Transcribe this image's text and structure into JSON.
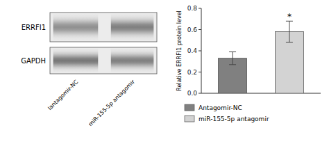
{
  "chart_data": [
    {
      "type": "blot",
      "rows": [
        "ERRFI1",
        "GAPDH"
      ],
      "lanes": [
        "Iantagomir-NC",
        "miR-155-5p antagomir"
      ]
    },
    {
      "type": "bar",
      "categories": [
        "Antagomir-NC",
        "miR-155-5p antagomir"
      ],
      "values": [
        0.33,
        0.58
      ],
      "errors": [
        0.06,
        0.1
      ],
      "colors": [
        "#808080",
        "#d3d3d3"
      ],
      "ylabel": "Relative ERRFI1 protein level",
      "ylim": [
        0.0,
        0.8
      ],
      "yticks": [
        {
          "value": 0.0,
          "label": "0.0"
        },
        0.2,
        0.4,
        0.6,
        0.8
      ],
      "annotations": [
        {
          "text": "*",
          "category": "miR-155-5p antagomir"
        }
      ],
      "legend": "bottom",
      "tick_labels": "y",
      "grid": false
    }
  ]
}
